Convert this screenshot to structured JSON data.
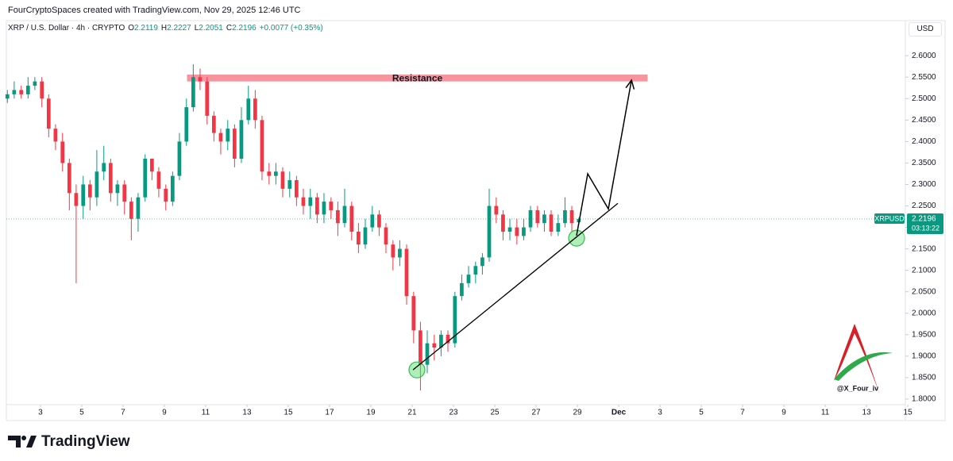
{
  "chart_data": {
    "type": "candlestick",
    "attribution": "FourCryptoSpaces created with TradingView.com, Nov 29, 2025 12:46 UTC",
    "symbol_line": "XRP / U.S. Dollar · 4h · CRYPTO",
    "ohlc": [
      {
        "label": "O",
        "value": 2.2119
      },
      {
        "label": "H",
        "value": 2.2227
      },
      {
        "label": "L",
        "value": 2.2051
      },
      {
        "label": "C",
        "value": 2.2196
      }
    ],
    "change": "+0.0077 (+0.35%)",
    "currency": "USD",
    "up_color": "#089981",
    "down_color": "#f23645",
    "xlim": [
      1.35,
      44.88
    ],
    "ylim": [
      1.787,
      2.641
    ],
    "yticks": [
      {
        "value": 1.8,
        "label": "1.8000"
      },
      {
        "value": 1.85,
        "label": "1.8500"
      },
      {
        "value": 1.9,
        "label": "1.9000"
      },
      {
        "value": 1.95,
        "label": "1.9500"
      },
      {
        "value": 2.0,
        "label": "2.0000"
      },
      {
        "value": 2.05,
        "label": "2.0500"
      },
      {
        "value": 2.1,
        "label": "2.1000"
      },
      {
        "value": 2.15,
        "label": "2.1500"
      },
      {
        "value": 2.2,
        "label": "2.2000"
      },
      {
        "value": 2.25,
        "label": "2.2500"
      },
      {
        "value": 2.3,
        "label": "2.3000"
      },
      {
        "value": 2.35,
        "label": "2.3500"
      },
      {
        "value": 2.4,
        "label": "2.4000"
      },
      {
        "value": 2.45,
        "label": "2.4500"
      },
      {
        "value": 2.5,
        "label": "2.5000"
      },
      {
        "value": 2.55,
        "label": "2.5500"
      },
      {
        "value": 2.6,
        "label": "2.6000"
      }
    ],
    "xticks": [
      3,
      5,
      7,
      9,
      11,
      13,
      15,
      17,
      19,
      21,
      23,
      25,
      27,
      29,
      {
        "value": 31,
        "label": "Dec"
      },
      {
        "value": 33,
        "label": "3"
      },
      {
        "value": 35,
        "label": "5"
      },
      {
        "value": 37,
        "label": "7"
      },
      {
        "value": 39,
        "label": "9"
      },
      {
        "value": 41,
        "label": "11"
      },
      {
        "value": 43,
        "label": "13"
      },
      {
        "value": 45,
        "label": "15"
      }
    ],
    "grid": false,
    "x": [
      1.4,
      1.73,
      2.07,
      2.4,
      2.73,
      3.07,
      3.4,
      3.73,
      4.07,
      4.4,
      4.73,
      5.07,
      5.4,
      5.73,
      6.07,
      6.4,
      6.73,
      7.07,
      7.4,
      7.73,
      8.07,
      8.4,
      8.73,
      9.07,
      9.4,
      9.73,
      10.07,
      10.4,
      10.73,
      11.07,
      11.4,
      11.73,
      12.07,
      12.4,
      12.73,
      13.07,
      13.4,
      13.73,
      14.07,
      14.4,
      14.73,
      15.07,
      15.4,
      15.73,
      16.07,
      16.4,
      16.73,
      17.07,
      17.4,
      17.73,
      18.07,
      18.4,
      18.73,
      19.07,
      19.4,
      19.73,
      20.07,
      20.4,
      20.73,
      21.07,
      21.4,
      21.73,
      22.07,
      22.4,
      22.73,
      23.07,
      23.4,
      23.73,
      24.07,
      24.4,
      24.73,
      25.07,
      25.4,
      25.73,
      26.07,
      26.4,
      26.73,
      27.07,
      27.4,
      27.73,
      28.07,
      28.4,
      28.73,
      29.07
    ],
    "open": [
      2.5,
      2.51,
      2.52,
      2.51,
      2.53,
      2.54,
      2.5,
      2.43,
      2.4,
      2.35,
      2.28,
      2.25,
      2.3,
      2.27,
      2.33,
      2.35,
      2.28,
      2.3,
      2.26,
      2.22,
      2.27,
      2.36,
      2.33,
      2.29,
      2.26,
      2.32,
      2.4,
      2.48,
      2.55,
      2.54,
      2.46,
      2.42,
      2.4,
      2.43,
      2.36,
      2.45,
      2.5,
      2.45,
      2.33,
      2.32,
      2.33,
      2.29,
      2.31,
      2.27,
      2.25,
      2.27,
      2.23,
      2.26,
      2.24,
      2.21,
      2.25,
      2.19,
      2.16,
      2.2,
      2.23,
      2.2,
      2.16,
      2.13,
      2.15,
      2.04,
      1.96,
      1.88,
      1.93,
      1.92,
      1.95,
      1.93,
      2.04,
      2.07,
      2.09,
      2.11,
      2.13,
      2.25,
      2.23,
      2.19,
      2.2,
      2.18,
      2.2,
      2.24,
      2.21,
      2.23,
      2.19,
      2.21,
      2.24,
      2.2119
    ],
    "high": [
      2.52,
      2.54,
      2.53,
      2.55,
      2.55,
      2.55,
      2.51,
      2.44,
      2.42,
      2.36,
      2.3,
      2.32,
      2.31,
      2.38,
      2.39,
      2.36,
      2.31,
      2.31,
      2.27,
      2.28,
      2.37,
      2.36,
      2.34,
      2.3,
      2.33,
      2.42,
      2.5,
      2.58,
      2.57,
      2.55,
      2.47,
      2.43,
      2.45,
      2.44,
      2.48,
      2.53,
      2.52,
      2.46,
      2.35,
      2.35,
      2.34,
      2.33,
      2.32,
      2.29,
      2.29,
      2.28,
      2.28,
      2.27,
      2.26,
      2.29,
      2.26,
      2.21,
      2.22,
      2.25,
      2.24,
      2.21,
      2.17,
      2.17,
      2.16,
      2.05,
      1.98,
      1.96,
      1.95,
      1.96,
      1.96,
      2.05,
      2.09,
      2.11,
      2.12,
      2.14,
      2.29,
      2.27,
      2.24,
      2.22,
      2.22,
      2.22,
      2.25,
      2.25,
      2.24,
      2.24,
      2.23,
      2.27,
      2.25,
      2.2227
    ],
    "low": [
      2.49,
      2.5,
      2.5,
      2.5,
      2.52,
      2.48,
      2.41,
      2.38,
      2.33,
      2.24,
      2.07,
      2.22,
      2.24,
      2.25,
      2.31,
      2.26,
      2.25,
      2.23,
      2.17,
      2.19,
      2.26,
      2.31,
      2.27,
      2.24,
      2.25,
      2.31,
      2.39,
      2.47,
      2.52,
      2.44,
      2.4,
      2.37,
      2.38,
      2.34,
      2.35,
      2.44,
      2.43,
      2.31,
      2.3,
      2.3,
      2.27,
      2.27,
      2.25,
      2.23,
      2.22,
      2.21,
      2.21,
      2.22,
      2.18,
      2.2,
      2.17,
      2.14,
      2.15,
      2.19,
      2.18,
      2.14,
      2.1,
      2.11,
      2.02,
      1.93,
      1.82,
      1.86,
      1.89,
      1.9,
      1.91,
      1.92,
      2.03,
      2.06,
      2.07,
      2.09,
      2.12,
      2.21,
      2.17,
      2.17,
      2.16,
      2.17,
      2.19,
      2.2,
      2.19,
      2.18,
      2.18,
      2.2,
      2.19,
      2.2051
    ],
    "close": [
      2.51,
      2.52,
      2.51,
      2.53,
      2.54,
      2.5,
      2.43,
      2.4,
      2.35,
      2.28,
      2.25,
      2.3,
      2.27,
      2.33,
      2.35,
      2.28,
      2.3,
      2.26,
      2.22,
      2.27,
      2.36,
      2.33,
      2.29,
      2.26,
      2.32,
      2.4,
      2.48,
      2.55,
      2.54,
      2.46,
      2.42,
      2.4,
      2.43,
      2.36,
      2.45,
      2.5,
      2.45,
      2.33,
      2.32,
      2.33,
      2.29,
      2.31,
      2.27,
      2.25,
      2.27,
      2.23,
      2.26,
      2.24,
      2.21,
      2.25,
      2.19,
      2.16,
      2.2,
      2.23,
      2.2,
      2.16,
      2.13,
      2.15,
      2.04,
      1.96,
      1.88,
      1.93,
      1.92,
      1.95,
      1.93,
      2.04,
      2.07,
      2.09,
      2.11,
      2.13,
      2.25,
      2.23,
      2.19,
      2.2,
      2.18,
      2.2,
      2.24,
      2.21,
      2.23,
      2.19,
      2.21,
      2.24,
      2.21,
      2.2196
    ],
    "resistance": {
      "label": "Resistance",
      "x": [
        10.1,
        32.4
      ],
      "y": [
        2.54,
        2.556
      ],
      "color": "#f5828c"
    },
    "trendline": {
      "x": [
        21.04,
        30.96
      ],
      "y": [
        1.868,
        2.256
      ]
    },
    "projection": {
      "x": [
        28.96,
        29.5,
        30.5,
        31.62
      ],
      "y": [
        2.181,
        2.325,
        2.243,
        2.543
      ]
    },
    "highlights": {
      "x": [
        21.23,
        28.96
      ],
      "y": [
        1.868,
        2.175
      ]
    },
    "price_tag": {
      "symbol": "XRPUSD",
      "price": 2.2196,
      "countdown": "03:13:22"
    },
    "watermark": "@X_Four_iv",
    "brand": "TradingView"
  }
}
